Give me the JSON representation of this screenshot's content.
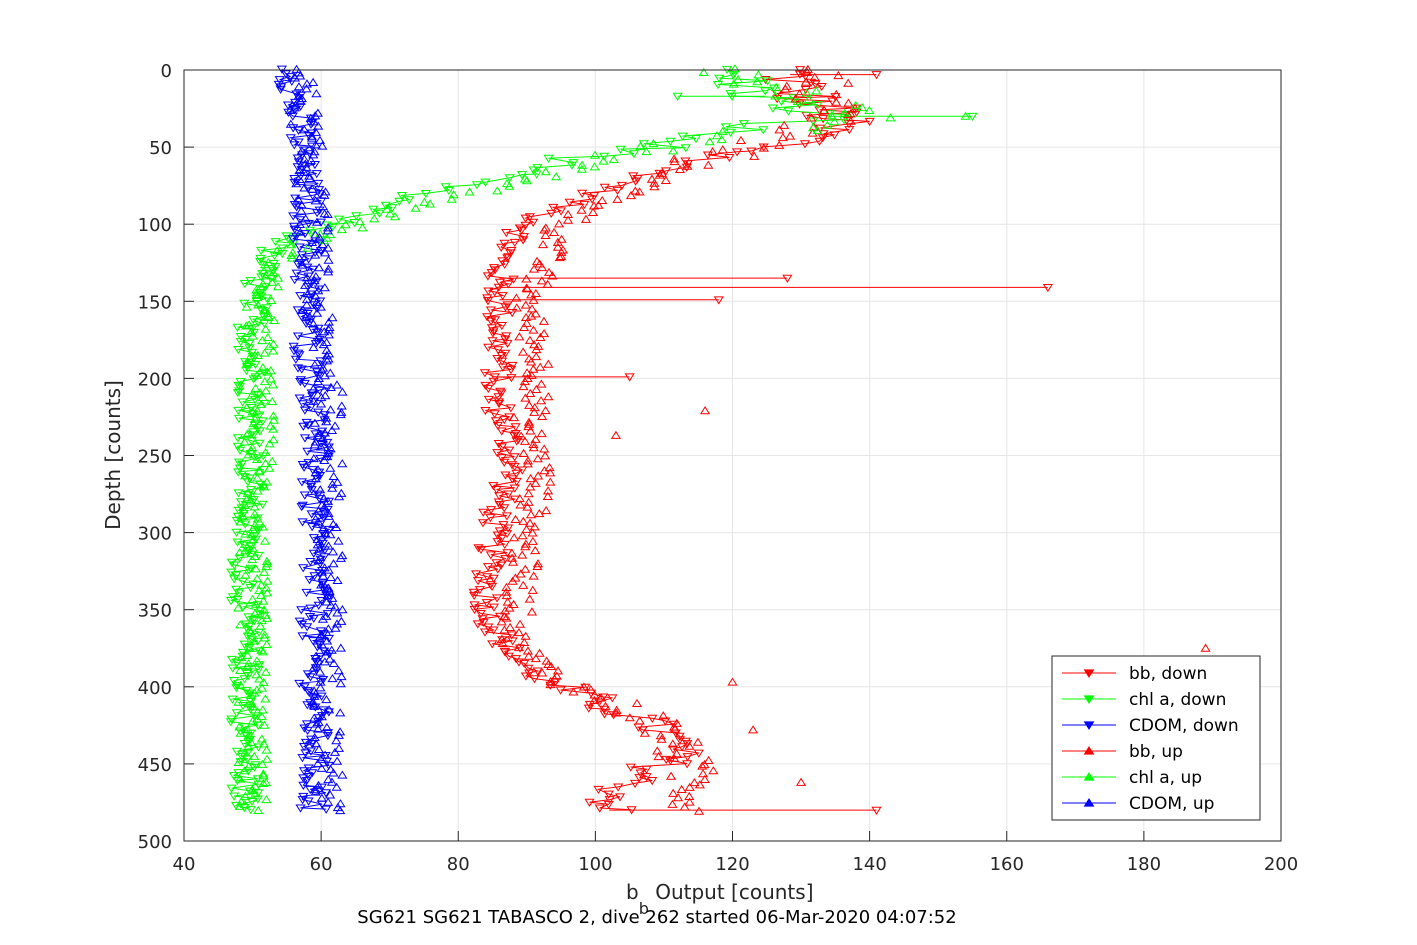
{
  "chart_data": {
    "type": "scatter",
    "xlabel_main": "b",
    "xlabel_sub": "b",
    "xlabel_rest": " Output [counts]",
    "ylabel": "Depth [counts]",
    "caption": "SG621 SG621 TABASCO 2, dive 262 started 06-Mar-2020 04:07:52",
    "xlim": [
      40,
      200
    ],
    "ylim": [
      0,
      500
    ],
    "y_reversed": true,
    "grid": true,
    "legend_position": "bottom-right",
    "xticks": [
      "40",
      "60",
      "80",
      "100",
      "120",
      "140",
      "160",
      "180",
      "200"
    ],
    "yticks": [
      "0",
      "50",
      "100",
      "150",
      "200",
      "250",
      "300",
      "350",
      "400",
      "450",
      "500"
    ],
    "series": [
      {
        "name": "bb, down",
        "color": "#ff0000",
        "marker": "triangle-down",
        "connected": true,
        "profile": [
          [
            0,
            128
          ],
          [
            15,
            130
          ],
          [
            30,
            135
          ],
          [
            45,
            132
          ],
          [
            55,
            120
          ],
          [
            65,
            110
          ],
          [
            80,
            100
          ],
          [
            95,
            92
          ],
          [
            110,
            88
          ],
          [
            125,
            86
          ],
          [
            140,
            86
          ],
          [
            155,
            86
          ],
          [
            170,
            86
          ],
          [
            185,
            86
          ],
          [
            195,
            86
          ],
          [
            210,
            85
          ],
          [
            230,
            87
          ],
          [
            260,
            88
          ],
          [
            280,
            86
          ],
          [
            300,
            85
          ],
          [
            320,
            85
          ],
          [
            340,
            84
          ],
          [
            360,
            85
          ],
          [
            380,
            88
          ],
          [
            395,
            92
          ],
          [
            410,
            100
          ],
          [
            420,
            106
          ],
          [
            430,
            110
          ],
          [
            440,
            112
          ],
          [
            450,
            110
          ],
          [
            460,
            106
          ],
          [
            470,
            103
          ],
          [
            480,
            102
          ]
        ],
        "outliers": [
          [
            141,
            166
          ],
          [
            135,
            128
          ],
          [
            149,
            118
          ],
          [
            3,
            141
          ],
          [
            199,
            105
          ],
          [
            480,
            141
          ]
        ]
      },
      {
        "name": "chl a, down",
        "color": "#00ff00",
        "marker": "triangle-down",
        "connected": true,
        "profile": [
          [
            0,
            118
          ],
          [
            10,
            122
          ],
          [
            20,
            126
          ],
          [
            30,
            134
          ],
          [
            40,
            118
          ],
          [
            50,
            108
          ],
          [
            60,
            96
          ],
          [
            70,
            86
          ],
          [
            80,
            74
          ],
          [
            90,
            68
          ],
          [
            100,
            62
          ],
          [
            110,
            55
          ],
          [
            120,
            52
          ],
          [
            135,
            51
          ],
          [
            150,
            50
          ],
          [
            170,
            50
          ],
          [
            190,
            50
          ],
          [
            210,
            50
          ],
          [
            250,
            50
          ],
          [
            300,
            49
          ],
          [
            350,
            49
          ],
          [
            400,
            49
          ],
          [
            440,
            49
          ],
          [
            480,
            49
          ]
        ],
        "outliers": [
          [
            30,
            155
          ],
          [
            17,
            112
          ]
        ]
      },
      {
        "name": "CDOM, down",
        "color": "#0000ff",
        "marker": "triangle-down",
        "connected": true,
        "profile": [
          [
            0,
            56
          ],
          [
            20,
            56
          ],
          [
            40,
            57
          ],
          [
            60,
            57
          ],
          [
            80,
            58
          ],
          [
            100,
            58
          ],
          [
            120,
            58
          ],
          [
            140,
            58
          ],
          [
            160,
            58
          ],
          [
            180,
            58
          ],
          [
            200,
            59
          ],
          [
            250,
            59
          ],
          [
            300,
            59
          ],
          [
            350,
            59
          ],
          [
            400,
            59
          ],
          [
            450,
            59
          ],
          [
            480,
            59
          ]
        ],
        "outliers": []
      },
      {
        "name": "bb, up",
        "color": "#ff0000",
        "marker": "triangle-up",
        "connected": false,
        "profile": [
          [
            0,
            130
          ],
          [
            30,
            135
          ],
          [
            60,
            115
          ],
          [
            100,
            95
          ],
          [
            150,
            90
          ],
          [
            200,
            92
          ],
          [
            230,
            90
          ],
          [
            260,
            92
          ],
          [
            300,
            90
          ],
          [
            340,
            89
          ],
          [
            370,
            88
          ],
          [
            400,
            96
          ],
          [
            420,
            108
          ],
          [
            440,
            112
          ],
          [
            460,
            114
          ],
          [
            480,
            115
          ]
        ],
        "outliers": [
          [
            375,
            189
          ],
          [
            221,
            116
          ],
          [
            237,
            103
          ],
          [
            462,
            130
          ],
          [
            397,
            120
          ],
          [
            428,
            123
          ]
        ]
      },
      {
        "name": "chl a, up",
        "color": "#00ff00",
        "marker": "triangle-up",
        "connected": false,
        "profile": [
          [
            0,
            120
          ],
          [
            30,
            140
          ],
          [
            50,
            110
          ],
          [
            70,
            92
          ],
          [
            90,
            72
          ],
          [
            105,
            62
          ],
          [
            120,
            54
          ],
          [
            150,
            51
          ],
          [
            200,
            51
          ],
          [
            250,
            51
          ],
          [
            300,
            50
          ],
          [
            350,
            50
          ],
          [
            400,
            50
          ],
          [
            450,
            50
          ],
          [
            480,
            50
          ]
        ],
        "outliers": [
          [
            30,
            154
          ]
        ]
      },
      {
        "name": "CDOM, up",
        "color": "#0000ff",
        "marker": "triangle-up",
        "connected": false,
        "profile": [
          [
            0,
            57
          ],
          [
            50,
            58
          ],
          [
            100,
            59
          ],
          [
            150,
            59
          ],
          [
            200,
            61
          ],
          [
            250,
            61
          ],
          [
            300,
            61
          ],
          [
            350,
            61
          ],
          [
            400,
            61
          ],
          [
            450,
            61
          ],
          [
            480,
            61
          ]
        ],
        "outliers": []
      }
    ]
  }
}
